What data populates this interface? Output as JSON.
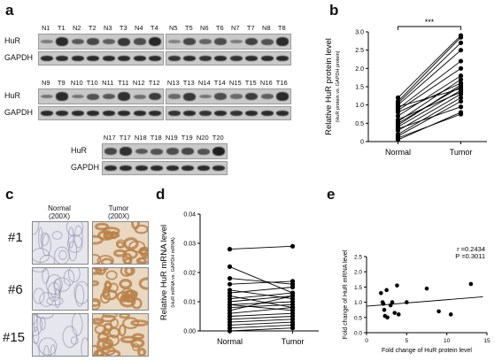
{
  "panels": {
    "a": "a",
    "b": "b",
    "c": "c",
    "d": "d",
    "e": "e"
  },
  "blots": [
    {
      "lanes": [
        "N1",
        "T1",
        "N2",
        "T2",
        "N3",
        "T3",
        "N4",
        "T4"
      ],
      "hur": [
        0.15,
        0.85,
        0.45,
        0.6,
        0.4,
        0.75,
        0.55,
        0.9
      ],
      "gapdh": [
        0.9,
        0.9,
        0.9,
        0.9,
        0.9,
        0.9,
        0.9,
        0.9
      ]
    },
    {
      "lanes": [
        "N5",
        "T5",
        "N6",
        "T6",
        "N7",
        "T7",
        "N8",
        "T8"
      ],
      "hur": [
        0.1,
        0.6,
        0.35,
        0.55,
        0.15,
        0.65,
        0.5,
        0.85
      ],
      "gapdh": [
        0.85,
        0.9,
        0.85,
        0.9,
        0.85,
        0.9,
        0.9,
        0.9
      ]
    },
    {
      "lanes": [
        "N9",
        "T9",
        "N10",
        "T10",
        "N11",
        "T11",
        "N12",
        "T12"
      ],
      "hur": [
        0.2,
        0.85,
        0.2,
        0.5,
        0.45,
        0.8,
        0.25,
        0.7
      ],
      "gapdh": [
        0.9,
        0.9,
        0.9,
        0.9,
        0.9,
        0.9,
        0.9,
        0.9
      ]
    },
    {
      "lanes": [
        "N13",
        "T13",
        "N14",
        "T14",
        "N15",
        "T15",
        "N16",
        "T16"
      ],
      "hur": [
        0.3,
        0.75,
        0.2,
        0.55,
        0.3,
        0.7,
        0.4,
        0.85
      ],
      "gapdh": [
        0.85,
        0.9,
        0.85,
        0.9,
        0.85,
        0.9,
        0.9,
        0.9
      ]
    },
    {
      "lanes": [
        "N17",
        "T17",
        "N18",
        "T18",
        "N19",
        "T19",
        "N20",
        "T20"
      ],
      "hur": [
        0.6,
        0.8,
        0.45,
        0.5,
        0.55,
        0.6,
        0.5,
        0.95
      ],
      "gapdh": [
        0.9,
        0.9,
        0.9,
        0.9,
        0.9,
        0.9,
        0.9,
        0.9
      ]
    }
  ],
  "blot_labels": {
    "hur": "HuR",
    "gapdh": "GAPDH"
  },
  "ihc": {
    "col_normal": "Normal",
    "col_tumor": "Tumor",
    "col_mag": "(200X)",
    "rows": [
      "#1",
      "#6",
      "#15"
    ],
    "normal_color": "#c8c8d6",
    "tumor_color": "#b8834a"
  },
  "chart_data": [
    {
      "type": "line",
      "panel": "b",
      "ylabel": "Relative HuR protein level",
      "ylabel_sub": "(HuR protein vs. GAPDH protein)",
      "categories": [
        "Normal",
        "Tumor"
      ],
      "ylim": [
        0,
        3
      ],
      "yticks": [
        0,
        0.5,
        1.0,
        1.5,
        2.0,
        2.5,
        3.0
      ],
      "ytick_labels": [
        "0",
        "0.5",
        "1.0",
        "1.5",
        "2.0",
        "2.5",
        "3.0"
      ],
      "significance": "***",
      "pairs": [
        [
          0.05,
          0.8
        ],
        [
          0.1,
          0.75
        ],
        [
          0.15,
          1.1
        ],
        [
          0.2,
          1.2
        ],
        [
          0.3,
          1.3
        ],
        [
          0.35,
          0.95
        ],
        [
          0.4,
          1.4
        ],
        [
          0.45,
          1.55
        ],
        [
          0.5,
          1.5
        ],
        [
          0.55,
          1.7
        ],
        [
          0.6,
          1.35
        ],
        [
          0.7,
          1.8
        ],
        [
          0.8,
          1.6
        ],
        [
          0.85,
          2.0
        ],
        [
          0.9,
          2.2
        ],
        [
          0.95,
          1.45
        ],
        [
          1.0,
          2.5
        ],
        [
          1.05,
          2.7
        ],
        [
          1.1,
          2.85
        ],
        [
          1.2,
          2.9
        ]
      ]
    },
    {
      "type": "line",
      "panel": "d",
      "ylabel": "Relative HuR mRNA level",
      "ylabel_sub": "(HuR mRNA vs. GAPDH mRNA)",
      "categories": [
        "Normal",
        "Tumor"
      ],
      "ylim": [
        0,
        0.04
      ],
      "yticks": [
        0,
        0.01,
        0.02,
        0.03,
        0.04
      ],
      "ytick_labels": [
        "0.00",
        "0.01",
        "0.02",
        "0.03",
        "0.04"
      ],
      "pairs": [
        [
          0.028,
          0.029
        ],
        [
          0.022,
          0.013
        ],
        [
          0.018,
          0.016
        ],
        [
          0.016,
          0.017
        ],
        [
          0.014,
          0.011
        ],
        [
          0.013,
          0.015
        ],
        [
          0.012,
          0.008
        ],
        [
          0.011,
          0.013
        ],
        [
          0.01,
          0.012
        ],
        [
          0.009,
          0.01
        ],
        [
          0.009,
          0.007
        ],
        [
          0.008,
          0.009
        ],
        [
          0.007,
          0.012
        ],
        [
          0.006,
          0.008
        ],
        [
          0.005,
          0.006
        ],
        [
          0.004,
          0.005
        ],
        [
          0.003,
          0.004
        ],
        [
          0.002,
          0.003
        ],
        [
          0.001,
          0.002
        ],
        [
          0.0,
          0.001
        ]
      ]
    },
    {
      "type": "scatter",
      "panel": "e",
      "xlabel": "Fold change of HuR protein level",
      "ylabel": "Fold change of HuR mRNA level",
      "xlim": [
        0,
        15
      ],
      "ylim": [
        0,
        2.5
      ],
      "xticks": [
        0,
        5,
        10,
        15
      ],
      "yticks": [
        0.0,
        0.5,
        1.0,
        1.5,
        2.0,
        2.5
      ],
      "xtick_labels": [
        "0",
        "5",
        "10",
        "15"
      ],
      "ytick_labels": [
        "0.0",
        "0.5",
        "1.0",
        "1.5",
        "2.0",
        "2.5"
      ],
      "stat_r": "r =0.2434",
      "stat_p": "P =0.3011",
      "points": [
        [
          1.8,
          1.3
        ],
        [
          2.0,
          1.0
        ],
        [
          2.1,
          0.95
        ],
        [
          2.2,
          0.75
        ],
        [
          2.3,
          0.55
        ],
        [
          2.5,
          1.4
        ],
        [
          2.6,
          0.5
        ],
        [
          3.0,
          0.9
        ],
        [
          3.2,
          1.0
        ],
        [
          3.5,
          0.65
        ],
        [
          3.8,
          1.55
        ],
        [
          4.0,
          0.6
        ],
        [
          5.0,
          1.0
        ],
        [
          7.5,
          1.45
        ],
        [
          9.0,
          0.7
        ],
        [
          10.5,
          0.6
        ],
        [
          13.0,
          1.6
        ]
      ],
      "fit": [
        [
          0,
          0.87
        ],
        [
          14.5,
          1.18
        ]
      ]
    }
  ]
}
